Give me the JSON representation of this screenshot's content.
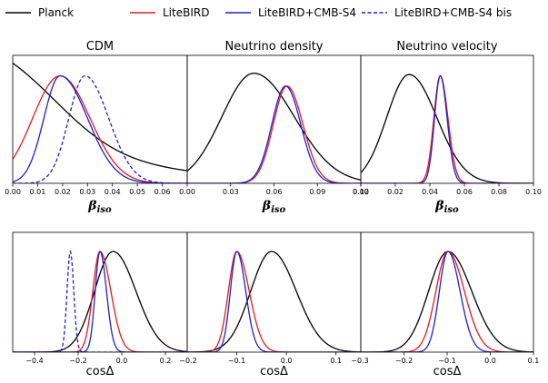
{
  "chart_data": {
    "type": "line",
    "legend": [
      {
        "name": "Planck",
        "color": "#000000",
        "dash": "solid"
      },
      {
        "name": "LiteBIRD",
        "color": "#e41a1c",
        "dash": "solid"
      },
      {
        "name": "LiteBIRD+CMB-S4",
        "color": "#1f1fd0",
        "dash": "solid"
      },
      {
        "name": "LiteBIRD+CMB-S4 bis",
        "color": "#1f1fd0",
        "dash": "dashed"
      }
    ],
    "legend_position": "top",
    "panels": [
      {
        "title": "CDM",
        "xlabel": "βiso",
        "xlabel_main": "β",
        "xlabel_sub": "iso",
        "xlim": [
          0.0,
          0.07
        ],
        "xticks": [
          0.0,
          0.01,
          0.02,
          0.03,
          0.04,
          0.05,
          0.06
        ],
        "xtick_labels": [
          "0.00",
          "0.01",
          "0.02",
          "0.03",
          "0.04",
          "0.05",
          "0.06"
        ],
        "series": [
          {
            "name": "Planck",
            "kind": "halfnormal",
            "mu": 0.0,
            "sigma": 0.022,
            "tail": 0.6
          },
          {
            "name": "LiteBIRD",
            "kind": "skewnormal",
            "mu": 0.019,
            "sl": 0.011,
            "sr": 0.012,
            "amp": 0.84
          },
          {
            "name": "LiteBIRD+CMB-S4",
            "kind": "skewnormal",
            "mu": 0.019,
            "sl": 0.0065,
            "sr": 0.011,
            "amp": 0.84
          },
          {
            "name": "LiteBIRD+CMB-S4 bis",
            "kind": "skewnormal",
            "mu": 0.029,
            "sl": 0.0065,
            "sr": 0.0095,
            "amp": 0.84
          }
        ]
      },
      {
        "title": "Neutrino density",
        "xlabel": "βiso",
        "xlabel_main": "β",
        "xlabel_sub": "iso",
        "xlim": [
          0.0,
          0.12
        ],
        "xticks": [
          0.0,
          0.03,
          0.06,
          0.09,
          0.12
        ],
        "xtick_labels": [
          "0.00",
          "0.03",
          "0.06",
          "0.09",
          "0.12"
        ],
        "series": [
          {
            "name": "Planck",
            "kind": "skewnormal",
            "mu": 0.046,
            "sl": 0.022,
            "sr": 0.028,
            "amp": 0.86
          },
          {
            "name": "LiteBIRD",
            "kind": "skewnormal",
            "mu": 0.069,
            "sl": 0.0095,
            "sr": 0.011,
            "amp": 0.76
          },
          {
            "name": "LiteBIRD+CMB-S4",
            "kind": "skewnormal",
            "mu": 0.068,
            "sl": 0.0095,
            "sr": 0.0105,
            "amp": 0.76
          }
        ]
      },
      {
        "title": "Neutrino velocity",
        "xlabel": "βiso",
        "xlabel_main": "β",
        "xlabel_sub": "iso",
        "xlim": [
          0.0,
          0.1
        ],
        "xticks": [
          0.0,
          0.02,
          0.04,
          0.06,
          0.08,
          0.1
        ],
        "xtick_labels": [
          "0.00",
          "0.02",
          "0.04",
          "0.06",
          "0.08",
          "0.10"
        ],
        "series": [
          {
            "name": "Planck",
            "kind": "skewnormal",
            "mu": 0.028,
            "sl": 0.013,
            "sr": 0.016,
            "amp": 0.85
          },
          {
            "name": "LiteBIRD",
            "kind": "skewnormal",
            "mu": 0.046,
            "sl": 0.0037,
            "sr": 0.0045,
            "amp": 0.84
          },
          {
            "name": "LiteBIRD+CMB-S4",
            "kind": "skewnormal",
            "mu": 0.046,
            "sl": 0.0033,
            "sr": 0.004,
            "amp": 0.84
          }
        ]
      },
      {
        "title": "",
        "xlabel": "cosΔ",
        "xlim": [
          -0.5,
          0.3
        ],
        "xticks": [
          -0.4,
          -0.2,
          0.0,
          0.2
        ],
        "xtick_labels": [
          "−0.4",
          "−0.2",
          "0.0",
          "0.2"
        ],
        "series": [
          {
            "name": "Planck",
            "kind": "skewnormal",
            "mu": -0.04,
            "sl": 0.085,
            "sr": 0.105,
            "amp": 0.84
          },
          {
            "name": "LiteBIRD",
            "kind": "skewnormal",
            "mu": -0.1,
            "sl": 0.033,
            "sr": 0.05,
            "amp": 0.84
          },
          {
            "name": "LiteBIRD+CMB-S4",
            "kind": "skewnormal",
            "mu": -0.1,
            "sl": 0.022,
            "sr": 0.03,
            "amp": 0.84
          },
          {
            "name": "LiteBIRD+CMB-S4 bis",
            "kind": "skewnormal",
            "mu": -0.236,
            "sl": 0.015,
            "sr": 0.016,
            "amp": 0.84
          }
        ]
      },
      {
        "title": "",
        "xlabel": "cosΔ",
        "xlim": [
          -0.2,
          0.15
        ],
        "xticks": [
          -0.1,
          0.0,
          0.1
        ],
        "xtick_labels": [
          "−0.1",
          "0.0",
          "0.1"
        ],
        "edge_left": "−0.2",
        "edge_right": "−0.3",
        "series": [
          {
            "name": "Planck",
            "kind": "skewnormal",
            "mu": -0.03,
            "sl": 0.042,
            "sr": 0.05,
            "amp": 0.84
          },
          {
            "name": "LiteBIRD",
            "kind": "skewnormal",
            "mu": -0.1,
            "sl": 0.017,
            "sr": 0.025,
            "amp": 0.84
          },
          {
            "name": "LiteBIRD+CMB-S4",
            "kind": "skewnormal",
            "mu": -0.1,
            "sl": 0.013,
            "sr": 0.018,
            "amp": 0.84
          }
        ]
      },
      {
        "title": "",
        "xlabel": "cosΔ",
        "xlim": [
          -0.3,
          0.1
        ],
        "xticks": [
          -0.2,
          -0.1,
          0.0,
          0.1
        ],
        "xtick_labels": [
          "−0.2",
          "−0.1",
          "0.0",
          "0.1"
        ],
        "series": [
          {
            "name": "Planck",
            "kind": "skewnormal",
            "mu": -0.098,
            "sl": 0.045,
            "sr": 0.055,
            "amp": 0.84
          },
          {
            "name": "LiteBIRD",
            "kind": "skewnormal",
            "mu": -0.098,
            "sl": 0.028,
            "sr": 0.038,
            "amp": 0.84
          },
          {
            "name": "LiteBIRD+CMB-S4",
            "kind": "skewnormal",
            "mu": -0.098,
            "sl": 0.02,
            "sr": 0.028,
            "amp": 0.84
          }
        ]
      }
    ]
  }
}
